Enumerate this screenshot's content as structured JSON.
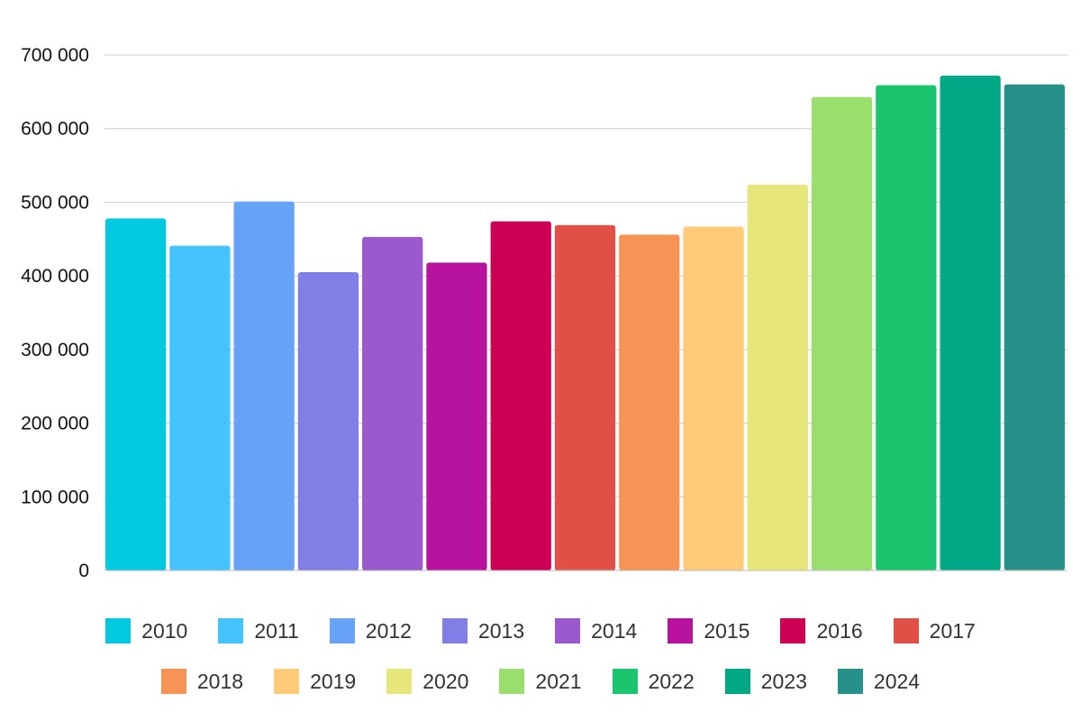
{
  "chart_data": {
    "type": "bar",
    "title": "",
    "xlabel": "",
    "ylabel": "",
    "ylim": [
      0,
      700000
    ],
    "yticks": [
      0,
      100000,
      200000,
      300000,
      400000,
      500000,
      600000,
      700000
    ],
    "ytick_labels": [
      "0",
      "100 000",
      "200 000",
      "300 000",
      "400 000",
      "500 000",
      "600 000",
      "700 000"
    ],
    "grid": true,
    "legend_position": "bottom",
    "categories": [
      "2010",
      "2011",
      "2012",
      "2013",
      "2014",
      "2015",
      "2016",
      "2017",
      "2018",
      "2019",
      "2020",
      "2021",
      "2022",
      "2023",
      "2024"
    ],
    "values": [
      478000,
      441000,
      501000,
      405000,
      453000,
      418000,
      474000,
      469000,
      456000,
      467000,
      524000,
      643000,
      659000,
      672000,
      660000
    ],
    "colors": [
      "#00c9e0",
      "#45c3ff",
      "#66a3f7",
      "#7f7fe6",
      "#9a59cc",
      "#b8139e",
      "#cc0055",
      "#e05046",
      "#f79455",
      "#ffcb78",
      "#e6e67a",
      "#9adf6e",
      "#1bc46e",
      "#00a885",
      "#269189"
    ]
  }
}
